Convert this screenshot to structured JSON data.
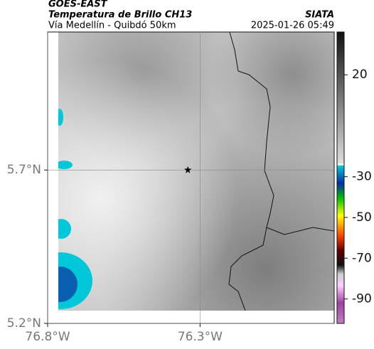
{
  "header": {
    "title": "GOES-EAST",
    "subtitle": "Temperatura de Brillo CH13",
    "region": "Vía Medellín - Quibdó 50km",
    "source": "SIATA",
    "timestamp": "2025-01-26 05:49"
  },
  "map": {
    "xlim": [
      -76.8,
      -75.86
    ],
    "ylim": [
      5.2,
      6.15
    ],
    "xticks": [
      {
        "value": -76.8,
        "label": "76.8°W"
      },
      {
        "value": -76.3,
        "label": "76.3°W"
      }
    ],
    "yticks": [
      {
        "value": 5.2,
        "label": "5.2°N"
      },
      {
        "value": 5.7,
        "label": "5.7°N"
      }
    ],
    "grid": true,
    "marker": {
      "lon": -76.34,
      "lat": 5.7
    }
  },
  "colorbar": {
    "lim": [
      41,
      -102
    ],
    "ticks": [
      20,
      -30,
      -50,
      -70,
      -90
    ]
  }
}
